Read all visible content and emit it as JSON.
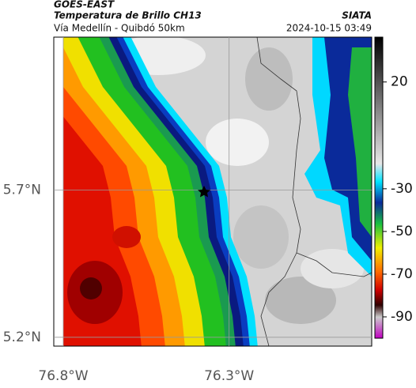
{
  "header": {
    "satellite": "GOES-EAST",
    "product": "Temperatura de Brillo CH13",
    "region": "Vía Medellín - Quibdó 50km",
    "source": "SIATA",
    "timestamp": "2024-10-15 03:49"
  },
  "map": {
    "xlim": [
      -76.8,
      -75.87
    ],
    "ylim": [
      5.17,
      6.22
    ],
    "xticks": [
      {
        "value": -76.8,
        "label": "76.8°W"
      },
      {
        "value": -76.3,
        "label": "76.3°W"
      }
    ],
    "yticks": [
      {
        "value": 5.7,
        "label": "5.7°N"
      },
      {
        "value": 5.2,
        "label": "5.2°N"
      }
    ]
  },
  "colorbar": {
    "lim": [
      41,
      -100
    ],
    "ticks": [
      20,
      -30,
      -50,
      -70,
      -90
    ]
  }
}
